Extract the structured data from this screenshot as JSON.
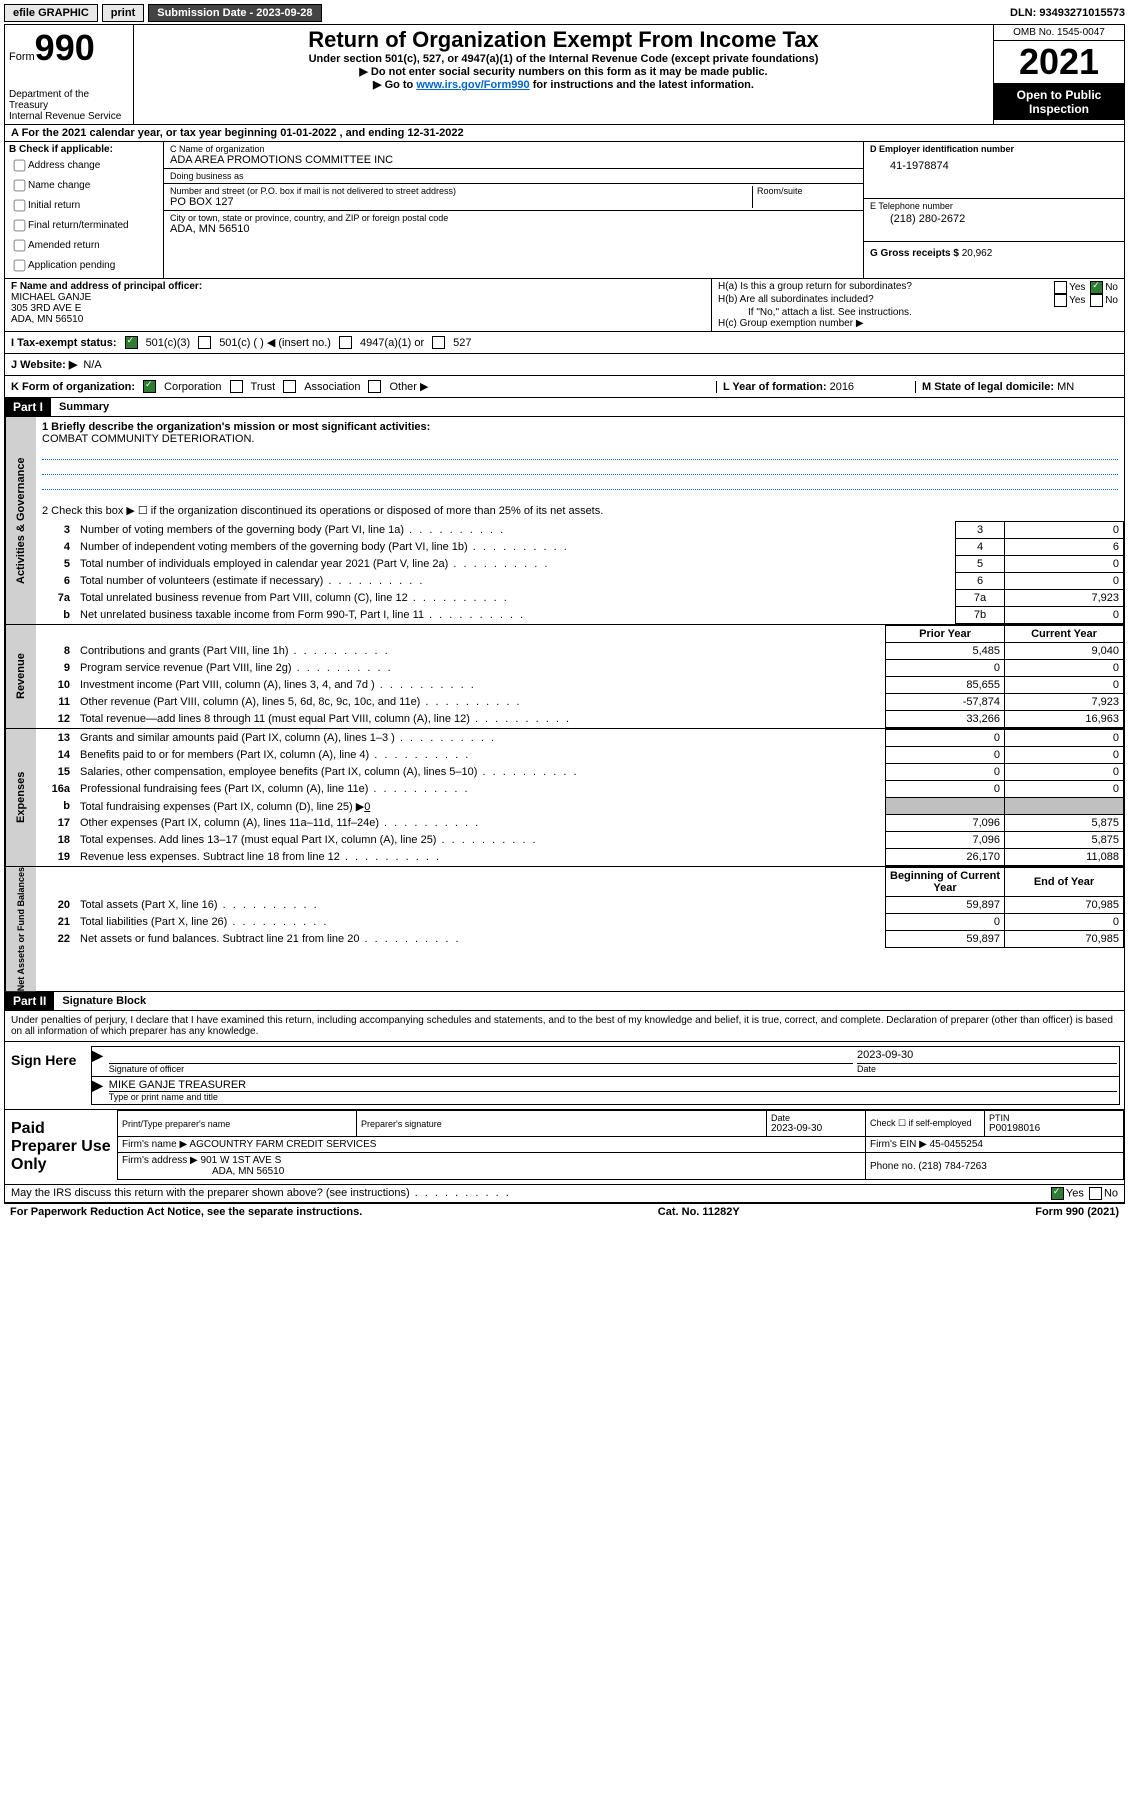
{
  "topbar": {
    "efile": "efile GRAPHIC",
    "print": "print",
    "subdate_label": "Submission Date - 2023-09-28",
    "dln_label": "DLN: 93493271015573"
  },
  "header": {
    "form_small": "Form",
    "form_big": "990",
    "dept": "Department of the Treasury",
    "irs": "Internal Revenue Service",
    "title": "Return of Organization Exempt From Income Tax",
    "sub1": "Under section 501(c), 527, or 4947(a)(1) of the Internal Revenue Code (except private foundations)",
    "sub2": "▶ Do not enter social security numbers on this form as it may be made public.",
    "sub3a": "▶ Go to ",
    "sub3_link": "www.irs.gov/Form990",
    "sub3b": " for instructions and the latest information.",
    "omb": "OMB No. 1545-0047",
    "year": "2021",
    "inspection": "Open to Public Inspection"
  },
  "rowA": "A For the 2021 calendar year, or tax year beginning 01-01-2022   , and ending 12-31-2022",
  "colB": {
    "label": "B Check if applicable:",
    "opts": [
      "Address change",
      "Name change",
      "Initial return",
      "Final return/terminated",
      "Amended return",
      "Application pending"
    ]
  },
  "colC": {
    "name_label": "C Name of organization",
    "name": "ADA AREA PROMOTIONS COMMITTEE INC",
    "dba_label": "Doing business as",
    "dba": "",
    "addr_label": "Number and street (or P.O. box if mail is not delivered to street address)",
    "room_label": "Room/suite",
    "addr": "PO BOX 127",
    "city_label": "City or town, state or province, country, and ZIP or foreign postal code",
    "city": "ADA, MN  56510"
  },
  "colD": {
    "ein_label": "D Employer identification number",
    "ein": "41-1978874",
    "phone_label": "E Telephone number",
    "phone": "(218) 280-2672",
    "gross_label": "G Gross receipts $",
    "gross": "20,962"
  },
  "colF": {
    "label": "F Name and address of principal officer:",
    "name": "MICHAEL GANJE",
    "addr1": "305 3RD AVE E",
    "addr2": "ADA, MN  56510"
  },
  "colH": {
    "ha": "H(a)  Is this a group return for subordinates?",
    "hb": "H(b)  Are all subordinates included?",
    "hb_note": "If \"No,\" attach a list. See instructions.",
    "hc": "H(c)  Group exemption number ▶",
    "yes": "Yes",
    "no": "No"
  },
  "rowI": {
    "label": "I   Tax-exempt status:",
    "o1": "501(c)(3)",
    "o2": "501(c) (  ) ◀ (insert no.)",
    "o3": "4947(a)(1) or",
    "o4": "527"
  },
  "rowJ": {
    "label": "J   Website: ▶",
    "val": "N/A"
  },
  "rowK": {
    "label": "K Form of organization:",
    "o1": "Corporation",
    "o2": "Trust",
    "o3": "Association",
    "o4": "Other ▶",
    "L_label": "L Year of formation:",
    "L_val": "2016",
    "M_label": "M State of legal domicile:",
    "M_val": "MN"
  },
  "part1": {
    "header": "Part I",
    "title": "Summary",
    "line1_label": "1  Briefly describe the organization's mission or most significant activities:",
    "line1_val": "COMBAT COMMUNITY DETERIORATION.",
    "line2": "2  Check this box ▶ ☐  if the organization discontinued its operations or disposed of more than 25% of its net assets."
  },
  "gov_rows": [
    {
      "n": "3",
      "desc": "Number of voting members of the governing body (Part VI, line 1a)",
      "box": "3",
      "val": "0"
    },
    {
      "n": "4",
      "desc": "Number of independent voting members of the governing body (Part VI, line 1b)",
      "box": "4",
      "val": "6"
    },
    {
      "n": "5",
      "desc": "Total number of individuals employed in calendar year 2021 (Part V, line 2a)",
      "box": "5",
      "val": "0"
    },
    {
      "n": "6",
      "desc": "Total number of volunteers (estimate if necessary)",
      "box": "6",
      "val": "0"
    },
    {
      "n": "7a",
      "desc": "Total unrelated business revenue from Part VIII, column (C), line 12",
      "box": "7a",
      "val": "7,923"
    },
    {
      "n": "b",
      "desc": "Net unrelated business taxable income from Form 990-T, Part I, line 11",
      "box": "7b",
      "val": "0"
    }
  ],
  "two_col_header": {
    "prior": "Prior Year",
    "current": "Current Year"
  },
  "rev_rows": [
    {
      "n": "8",
      "desc": "Contributions and grants (Part VIII, line 1h)",
      "p": "5,485",
      "c": "9,040"
    },
    {
      "n": "9",
      "desc": "Program service revenue (Part VIII, line 2g)",
      "p": "0",
      "c": "0"
    },
    {
      "n": "10",
      "desc": "Investment income (Part VIII, column (A), lines 3, 4, and 7d )",
      "p": "85,655",
      "c": "0"
    },
    {
      "n": "11",
      "desc": "Other revenue (Part VIII, column (A), lines 5, 6d, 8c, 9c, 10c, and 11e)",
      "p": "-57,874",
      "c": "7,923"
    },
    {
      "n": "12",
      "desc": "Total revenue—add lines 8 through 11 (must equal Part VIII, column (A), line 12)",
      "p": "33,266",
      "c": "16,963"
    }
  ],
  "exp_rows": [
    {
      "n": "13",
      "desc": "Grants and similar amounts paid (Part IX, column (A), lines 1–3 )",
      "p": "0",
      "c": "0"
    },
    {
      "n": "14",
      "desc": "Benefits paid to or for members (Part IX, column (A), line 4)",
      "p": "0",
      "c": "0"
    },
    {
      "n": "15",
      "desc": "Salaries, other compensation, employee benefits (Part IX, column (A), lines 5–10)",
      "p": "0",
      "c": "0"
    },
    {
      "n": "16a",
      "desc": "Professional fundraising fees (Part IX, column (A), line 11e)",
      "p": "0",
      "c": "0"
    }
  ],
  "exp_16b": {
    "n": "b",
    "desc": "Total fundraising expenses (Part IX, column (D), line 25) ▶",
    "val": "0"
  },
  "exp_rows2": [
    {
      "n": "17",
      "desc": "Other expenses (Part IX, column (A), lines 11a–11d, 11f–24e)",
      "p": "7,096",
      "c": "5,875"
    },
    {
      "n": "18",
      "desc": "Total expenses. Add lines 13–17 (must equal Part IX, column (A), line 25)",
      "p": "7,096",
      "c": "5,875"
    },
    {
      "n": "19",
      "desc": "Revenue less expenses. Subtract line 18 from line 12",
      "p": "26,170",
      "c": "11,088"
    }
  ],
  "net_header": {
    "begin": "Beginning of Current Year",
    "end": "End of Year"
  },
  "net_rows": [
    {
      "n": "20",
      "desc": "Total assets (Part X, line 16)",
      "p": "59,897",
      "c": "70,985"
    },
    {
      "n": "21",
      "desc": "Total liabilities (Part X, line 26)",
      "p": "0",
      "c": "0"
    },
    {
      "n": "22",
      "desc": "Net assets or fund balances. Subtract line 21 from line 20",
      "p": "59,897",
      "c": "70,985"
    }
  ],
  "tabs": {
    "gov": "Activities & Governance",
    "rev": "Revenue",
    "exp": "Expenses",
    "net": "Net Assets or Fund Balances"
  },
  "part2": {
    "header": "Part II",
    "title": "Signature Block",
    "decl": "Under penalties of perjury, I declare that I have examined this return, including accompanying schedules and statements, and to the best of my knowledge and belief, it is true, correct, and complete. Declaration of preparer (other than officer) is based on all information of which preparer has any knowledge."
  },
  "sign": {
    "here": "Sign Here",
    "sig_label": "Signature of officer",
    "date_label": "Date",
    "date": "2023-09-30",
    "name": "MIKE GANJE  TREASURER",
    "name_label": "Type or print name and title"
  },
  "paid": {
    "label": "Paid Preparer Use Only",
    "h_name": "Print/Type preparer's name",
    "h_sig": "Preparer's signature",
    "h_date": "Date",
    "date": "2023-09-30",
    "check": "Check ☐ if self-employed",
    "ptin_label": "PTIN",
    "ptin": "P00198016",
    "firm_name_label": "Firm's name    ▶",
    "firm_name": "AGCOUNTRY FARM CREDIT SERVICES",
    "firm_ein_label": "Firm's EIN ▶",
    "firm_ein": "45-0455254",
    "firm_addr_label": "Firm's address ▶",
    "firm_addr1": "901 W 1ST AVE S",
    "firm_addr2": "ADA, MN  56510",
    "phone_label": "Phone no.",
    "phone": "(218) 784-7263"
  },
  "may_discuss": "May the IRS discuss this return with the preparer shown above? (see instructions)",
  "footer": {
    "left": "For Paperwork Reduction Act Notice, see the separate instructions.",
    "mid": "Cat. No. 11282Y",
    "right": "Form 990 (2021)"
  }
}
